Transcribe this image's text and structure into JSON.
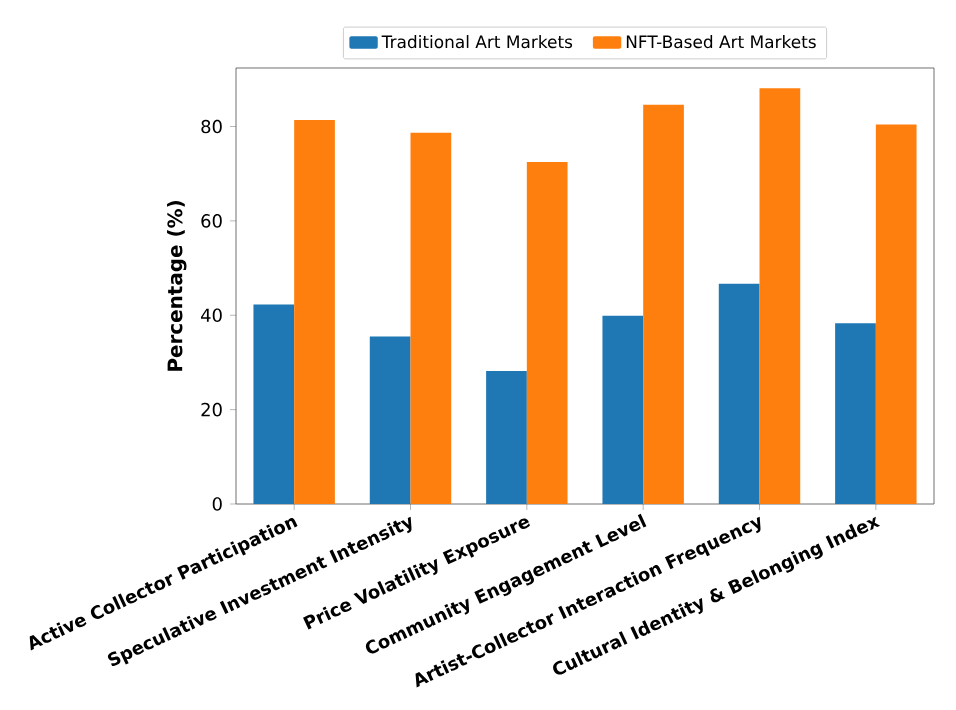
{
  "chart_data": {
    "type": "bar",
    "ylabel": "Percentage (%)",
    "categories": [
      "Active Collector Participation",
      "Speculative Investment Intensity",
      "Price Volatility Exposure",
      "Community Engagement Level",
      "Artist-Collector Interaction Frequency",
      "Cultural Identity & Belonging Index"
    ],
    "series": [
      {
        "name": "Traditional Art Markets",
        "color": "#1f77b4",
        "values": [
          42.3,
          35.5,
          28.2,
          39.9,
          46.7,
          38.3
        ]
      },
      {
        "name": "NFT-Based Art Markets",
        "color": "#ff7f0e",
        "values": [
          81.4,
          78.7,
          72.5,
          84.6,
          88.1,
          80.4
        ]
      }
    ],
    "ylim": [
      0,
      92.4
    ],
    "yticks": [
      0,
      20,
      40,
      60,
      80
    ],
    "legend": "top"
  }
}
